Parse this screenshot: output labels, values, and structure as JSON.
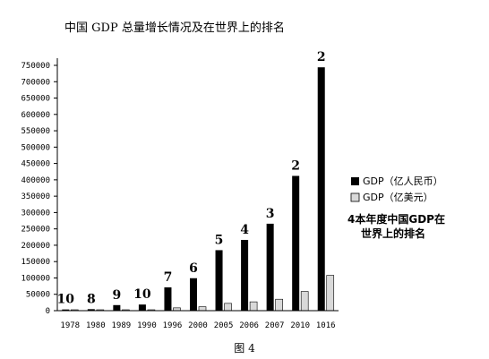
{
  "chart_data": {
    "type": "bar",
    "title": "中国 GDP 总量增长情况及在世界上的排名",
    "categories": [
      "1978",
      "1980",
      "1989",
      "1990",
      "1996",
      "2000",
      "2005",
      "2006",
      "2007",
      "2010",
      "1016"
    ],
    "series": [
      {
        "name": "GDP（亿人民币）",
        "color": "#000000",
        "values": [
          3645,
          4546,
          17000,
          18700,
          71200,
          99200,
          184900,
          216300,
          265800,
          412000,
          744000
        ]
      },
      {
        "name": "GDP（亿美元）",
        "color": "#d9d9d9",
        "values": [
          500,
          500,
          1000,
          1000,
          8600,
          12000,
          22300,
          27000,
          35000,
          58700,
          108000
        ]
      }
    ],
    "ranks": [
      "10",
      "8",
      "9",
      "10",
      "7",
      "6",
      "5",
      "4",
      "3",
      "2",
      "2"
    ],
    "ylim": [
      0,
      750000
    ],
    "yticks": [
      0,
      50000,
      100000,
      150000,
      200000,
      250000,
      300000,
      350000,
      400000,
      450000,
      500000,
      550000,
      600000,
      650000,
      700000,
      750000
    ],
    "legend_note": "4本年度中国GDP在世界上的排名",
    "caption": "图 4",
    "legend_position": "right"
  }
}
